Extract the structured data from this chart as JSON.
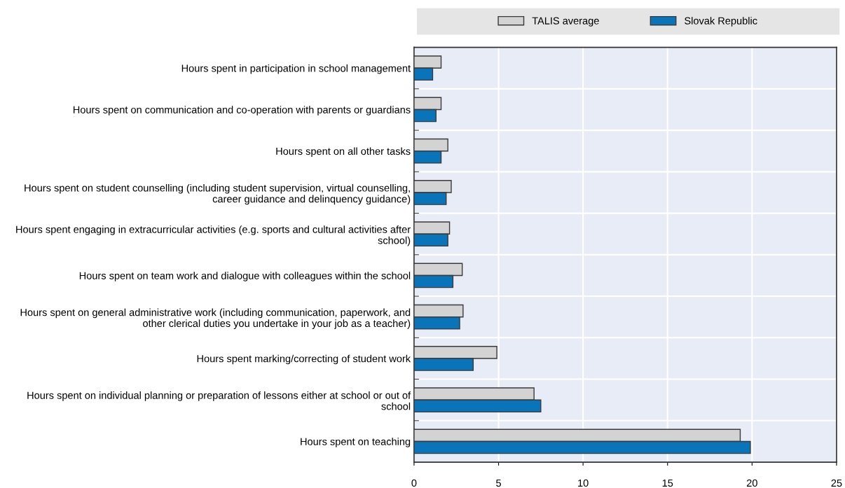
{
  "chart_data": {
    "type": "bar",
    "orientation": "horizontal",
    "categories": [
      "Hours spent in participation in school management",
      "Hours spent on communication and co-operation with parents or guardians",
      "Hours spent on all other tasks",
      "Hours spent on student counselling (including student supervision, virtual counselling, career guidance and delinquency guidance)",
      "Hours spent engaging in extracurricular activities (e.g. sports and cultural activities after school)",
      "Hours spent on team work and dialogue with colleagues within the school",
      "Hours spent on general administrative work (including communication, paperwork, and other clerical duties you undertake in your job as a teacher)",
      "Hours spent marking/correcting of student work",
      "Hours spent on individual planning or preparation of lessons either at school or out of school",
      "Hours spent on teaching"
    ],
    "series": [
      {
        "name": "TALIS average",
        "color": "#d3d3d3",
        "values": [
          1.6,
          1.6,
          2.0,
          2.2,
          2.1,
          2.85,
          2.9,
          4.9,
          7.1,
          19.3
        ]
      },
      {
        "name": "Slovak Republic",
        "color": "#0a74bb",
        "values": [
          1.1,
          1.3,
          1.6,
          1.9,
          2.0,
          2.3,
          2.7,
          3.5,
          7.5,
          19.9
        ]
      }
    ],
    "xlim": [
      0,
      25
    ],
    "xticks": [
      0,
      5,
      10,
      15,
      20,
      25
    ],
    "grid": "x",
    "legend": "top"
  }
}
